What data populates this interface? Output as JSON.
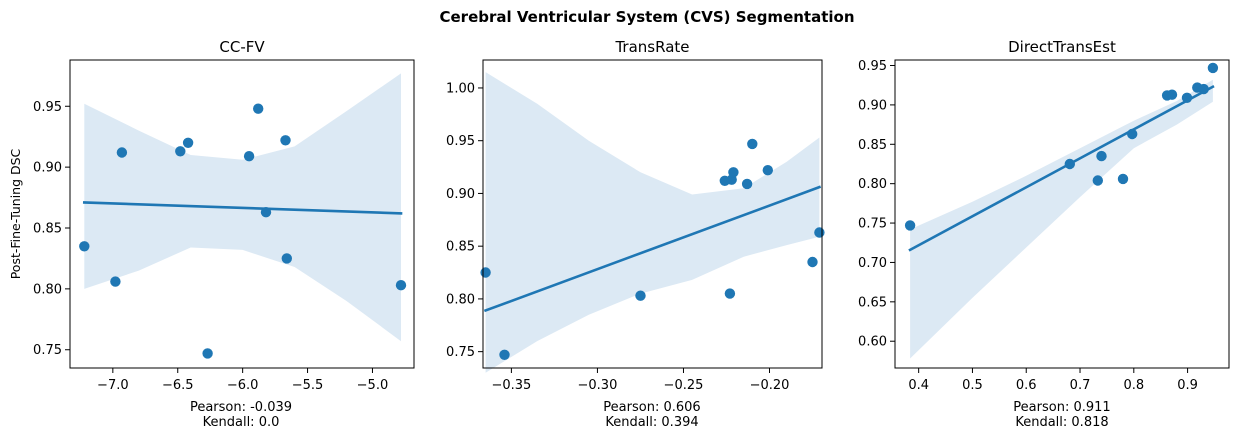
{
  "figure": {
    "suptitle": "Cerebral Ventricular System (CVS) Segmentation"
  },
  "colors": {
    "point": "#1f77b4",
    "line": "#1f77b4",
    "band": "#dce9f4",
    "axis": "#000000"
  },
  "chart_data": [
    {
      "type": "scatter",
      "title": "CC-FV",
      "xlabel": "",
      "ylabel": "Post-Fine-Tuning DSC",
      "xlim": [
        -7.33,
        -4.68
      ],
      "ylim": [
        0.735,
        0.988
      ],
      "xticks": [
        -7.0,
        -6.5,
        -6.0,
        -5.5,
        -5.0
      ],
      "xtick_labels": [
        "−7.0",
        "−6.5",
        "−6.0",
        "−5.5",
        "−5.0"
      ],
      "yticks": [
        0.75,
        0.8,
        0.85,
        0.9,
        0.95
      ],
      "ytick_labels": [
        "0.75",
        "0.80",
        "0.85",
        "0.90",
        "0.95"
      ],
      "points": [
        {
          "x": -7.22,
          "y": 0.835
        },
        {
          "x": -6.98,
          "y": 0.806
        },
        {
          "x": -6.93,
          "y": 0.912
        },
        {
          "x": -6.48,
          "y": 0.913
        },
        {
          "x": -6.42,
          "y": 0.92
        },
        {
          "x": -6.27,
          "y": 0.747
        },
        {
          "x": -5.95,
          "y": 0.909
        },
        {
          "x": -5.88,
          "y": 0.948
        },
        {
          "x": -5.82,
          "y": 0.863
        },
        {
          "x": -5.67,
          "y": 0.922
        },
        {
          "x": -5.66,
          "y": 0.825
        },
        {
          "x": -4.78,
          "y": 0.803
        }
      ],
      "fit": {
        "x": [
          -7.22,
          -4.78
        ],
        "y": [
          0.871,
          0.862
        ]
      },
      "ci_x": [
        -7.22,
        -6.8,
        -6.4,
        -6.0,
        -5.6,
        -5.2,
        -4.78
      ],
      "ci_upper": [
        0.952,
        0.93,
        0.91,
        0.906,
        0.917,
        0.946,
        0.977
      ],
      "ci_lower": [
        0.8,
        0.815,
        0.834,
        0.832,
        0.818,
        0.79,
        0.757
      ],
      "stats": [
        "Pearson: -0.039",
        "Kendall: 0.0"
      ]
    },
    {
      "type": "scatter",
      "title": "TransRate",
      "xlabel": "",
      "ylabel": "",
      "xlim": [
        -0.3665,
        -0.1695
      ],
      "ylim": [
        0.7345,
        1.0265
      ],
      "xticks": [
        -0.35,
        -0.3,
        -0.25,
        -0.2
      ],
      "xtick_labels": [
        "−0.35",
        "−0.30",
        "−0.25",
        "−0.20"
      ],
      "yticks": [
        0.75,
        0.8,
        0.85,
        0.9,
        0.95,
        1.0
      ],
      "ytick_labels": [
        "0.75",
        "0.80",
        "0.85",
        "0.90",
        "0.95",
        "1.00"
      ],
      "points": [
        {
          "x": -0.365,
          "y": 0.825
        },
        {
          "x": -0.354,
          "y": 0.747
        },
        {
          "x": -0.275,
          "y": 0.803
        },
        {
          "x": -0.226,
          "y": 0.912
        },
        {
          "x": -0.223,
          "y": 0.805
        },
        {
          "x": -0.222,
          "y": 0.913
        },
        {
          "x": -0.221,
          "y": 0.92
        },
        {
          "x": -0.213,
          "y": 0.909
        },
        {
          "x": -0.21,
          "y": 0.947
        },
        {
          "x": -0.201,
          "y": 0.922
        },
        {
          "x": -0.175,
          "y": 0.835
        },
        {
          "x": -0.171,
          "y": 0.863
        }
      ],
      "fit": {
        "x": [
          -0.365,
          -0.171
        ],
        "y": [
          0.789,
          0.906
        ]
      },
      "ci_x": [
        -0.365,
        -0.335,
        -0.305,
        -0.275,
        -0.245,
        -0.215,
        -0.19,
        -0.171
      ],
      "ci_upper": [
        1.015,
        0.985,
        0.95,
        0.92,
        0.899,
        0.905,
        0.93,
        0.953
      ],
      "ci_lower": [
        0.73,
        0.76,
        0.785,
        0.805,
        0.818,
        0.84,
        0.851,
        0.859
      ],
      "stats": [
        "Pearson: 0.606",
        "Kendall: 0.394"
      ]
    },
    {
      "type": "scatter",
      "title": "DirectTransEst",
      "xlabel": "",
      "ylabel": "",
      "xlim": [
        0.356,
        0.977
      ],
      "ylim": [
        0.566,
        0.957
      ],
      "xticks": [
        0.4,
        0.5,
        0.6,
        0.7,
        0.8,
        0.9
      ],
      "xtick_labels": [
        "0.4",
        "0.5",
        "0.6",
        "0.7",
        "0.8",
        "0.9"
      ],
      "yticks": [
        0.6,
        0.65,
        0.7,
        0.75,
        0.8,
        0.85,
        0.9,
        0.95
      ],
      "ytick_labels": [
        "0.60",
        "0.65",
        "0.70",
        "0.75",
        "0.80",
        "0.85",
        "0.90",
        "0.95"
      ],
      "points": [
        {
          "x": 0.384,
          "y": 0.747
        },
        {
          "x": 0.681,
          "y": 0.825
        },
        {
          "x": 0.733,
          "y": 0.804
        },
        {
          "x": 0.74,
          "y": 0.835
        },
        {
          "x": 0.78,
          "y": 0.806
        },
        {
          "x": 0.797,
          "y": 0.863
        },
        {
          "x": 0.862,
          "y": 0.912
        },
        {
          "x": 0.871,
          "y": 0.913
        },
        {
          "x": 0.899,
          "y": 0.909
        },
        {
          "x": 0.918,
          "y": 0.922
        },
        {
          "x": 0.93,
          "y": 0.92
        },
        {
          "x": 0.947,
          "y": 0.947
        }
      ],
      "fit": {
        "x": [
          0.384,
          0.947
        ],
        "y": [
          0.716,
          0.923
        ]
      },
      "ci_x": [
        0.384,
        0.5,
        0.6,
        0.7,
        0.8,
        0.88,
        0.947
      ],
      "ci_upper": [
        0.742,
        0.777,
        0.81,
        0.845,
        0.88,
        0.905,
        0.932
      ],
      "ci_lower": [
        0.578,
        0.655,
        0.719,
        0.783,
        0.845,
        0.875,
        0.904
      ],
      "stats": [
        "Pearson: 0.911",
        "Kendall: 0.818"
      ]
    }
  ]
}
